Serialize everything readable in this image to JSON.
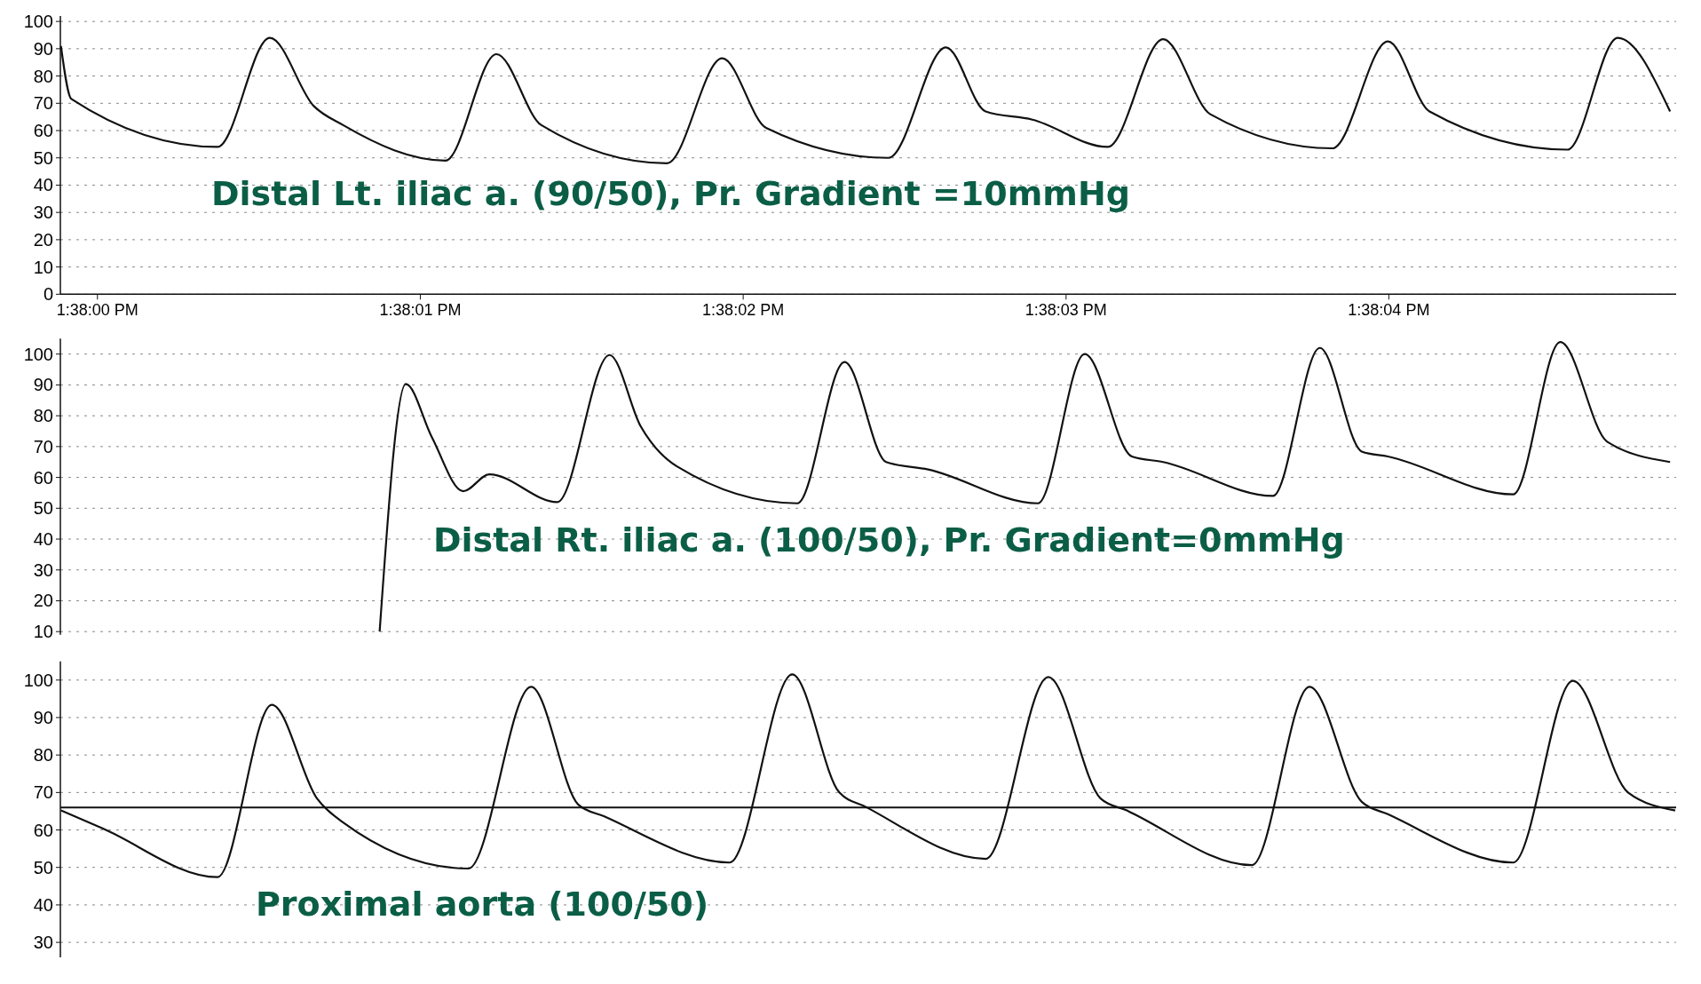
{
  "chart_data": [
    {
      "type": "line",
      "xlim": [
        13.6333014,
        13.6346916
      ],
      "xticks": [
        {
          "value": 13.6333333,
          "label": "1:38:00 PM"
        },
        {
          "value": 13.6336111,
          "label": "1:38:01 PM"
        },
        {
          "value": 13.6338889,
          "label": "1:38:02 PM"
        },
        {
          "value": 13.6341667,
          "label": "1:38:03 PM"
        },
        {
          "value": 13.6344444,
          "label": "1:38:04 PM"
        }
      ],
      "ylim": [
        0,
        102
      ],
      "yticks": [
        0,
        10,
        20,
        30,
        40,
        50,
        60,
        70,
        80,
        90,
        100
      ],
      "grid": "y",
      "annotations": [
        "Distal Lt. iliac a. (90/50),  Pr. Gradient =10mmHg"
      ],
      "series": [
        {
          "color": "#111111",
          "x": [
            13.6333019,
            13.6333108,
            13.6334366,
            13.6334816,
            13.6335194,
            13.6335447,
            13.6336327,
            13.6336766,
            13.6337152,
            13.6338233,
            13.6338708,
            13.6339086,
            13.6340139,
            13.6340633,
            13.6340975,
            13.6341377,
            13.6342025,
            13.6342502,
            13.6342908,
            13.6343958,
            13.6344436,
            13.6344794,
            13.634598,
            13.6346414,
            13.6346864
          ],
          "values": [
            91,
            71.6,
            54,
            94,
            69,
            62,
            49,
            88,
            62,
            48,
            86.5,
            61,
            50,
            90.5,
            67,
            64,
            54,
            93.5,
            66,
            53.5,
            92.7,
            67,
            53,
            94,
            67
          ]
        }
      ]
    },
    {
      "type": "line",
      "xlim": [
        13.6333014,
        13.6346916
      ],
      "ylim": [
        9,
        105
      ],
      "yticks": [
        10,
        20,
        30,
        40,
        50,
        60,
        70,
        80,
        90,
        100
      ],
      "grid": "y",
      "tick_labels": "y",
      "annotations": [
        "Distal Rt. iliac a. (100/50),  Pr. Gradient=0mmHg"
      ],
      "series": [
        {
          "color": "#111111",
          "x": [
            13.6335761,
            13.6335986,
            13.6336211,
            13.633648,
            13.6336705,
            13.6337289,
            13.6337739,
            13.6338008,
            13.6338322,
            13.6339355,
            13.6339761,
            13.6340119,
            13.634048,
            13.6341425,
            13.6341827,
            13.6342233,
            13.6342502,
            13.6343447,
            13.634385,
            13.6344211,
            13.6344436,
            13.6345514,
            13.6345919,
            13.6346322,
            13.6346864
          ],
          "values": [
            10,
            90.3,
            73,
            55.5,
            61,
            52,
            99.7,
            76.5,
            63.5,
            51.6,
            97.4,
            65,
            62.6,
            51.6,
            100,
            66.8,
            65,
            54,
            102,
            68.4,
            66.8,
            54.5,
            103.9,
            71.6,
            65
          ]
        }
      ]
    },
    {
      "type": "line",
      "xlim": [
        13.6333014,
        13.6346916
      ],
      "ylim": [
        26,
        105
      ],
      "yticks": [
        30,
        40,
        50,
        60,
        70,
        80,
        90,
        100
      ],
      "grid": "y",
      "tick_labels": "y",
      "annotations": [
        "Proximal aorta (100/50)"
      ],
      "ref_lines": [
        {
          "axis": "y",
          "value": 66,
          "color": "#111111"
        }
      ],
      "series": [
        {
          "color": "#111111",
          "x": [
            13.6333019,
            13.6333377,
            13.6334366,
            13.6334833,
            13.6335222,
            13.6335447,
            13.6336525,
            13.6337064,
            13.6337469,
            13.6337694,
            13.6338772,
            13.6339311,
            13.6339716,
            13.6339941,
            13.6340975,
            13.6341514,
            13.6341964,
            13.6342189,
            13.6343266,
            13.6343761,
            13.6344211,
            13.6344436,
            13.6345514,
            13.6346027,
            13.6346502,
            13.6346908
          ],
          "values": [
            65.2,
            60.4,
            47.4,
            93.4,
            68.4,
            62,
            49.7,
            98.2,
            66.8,
            63.6,
            51.3,
            101.5,
            70,
            66.2,
            52.3,
            100.8,
            68.4,
            65.2,
            50.6,
            98.2,
            67.5,
            64.2,
            51.3,
            99.8,
            70,
            65.2
          ]
        }
      ]
    }
  ]
}
